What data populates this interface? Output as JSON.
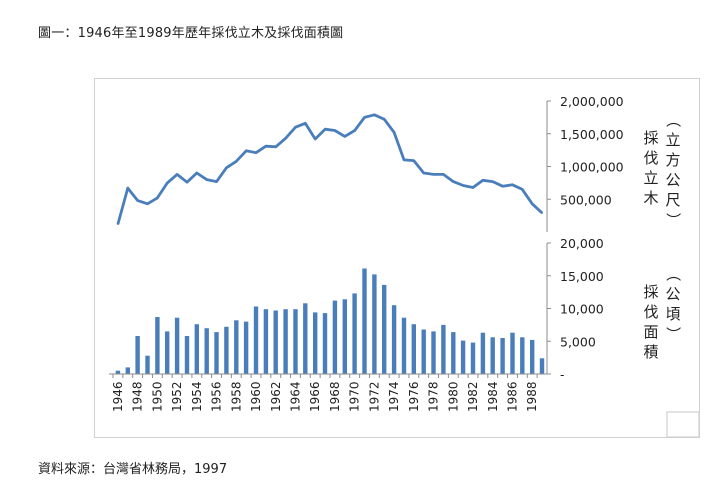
{
  "figure_title": "圖一：1946年至1989年歷年採伐立木及採伐面積圖",
  "source": "資料來源：台灣省林務局，1997",
  "chart_data": [
    {
      "type": "line",
      "ylabel": "（立方公尺）採伐立木",
      "ylim": [
        0,
        2000000
      ],
      "yticks": [
        "500,000",
        "1,000,000",
        "1,500,000",
        "2,000,000"
      ],
      "color": "#4a7ebb",
      "x": [
        1946,
        1947,
        1948,
        1949,
        1950,
        1951,
        1952,
        1953,
        1954,
        1955,
        1956,
        1957,
        1958,
        1959,
        1960,
        1961,
        1962,
        1963,
        1964,
        1965,
        1966,
        1967,
        1968,
        1969,
        1970,
        1971,
        1972,
        1973,
        1974,
        1975,
        1976,
        1977,
        1978,
        1979,
        1980,
        1981,
        1982,
        1983,
        1984,
        1985,
        1986,
        1987,
        1988,
        1989
      ],
      "values": [
        120000,
        670000,
        480000,
        430000,
        520000,
        750000,
        880000,
        760000,
        900000,
        800000,
        770000,
        980000,
        1080000,
        1240000,
        1210000,
        1310000,
        1300000,
        1430000,
        1600000,
        1660000,
        1420000,
        1570000,
        1550000,
        1460000,
        1550000,
        1750000,
        1790000,
        1720000,
        1520000,
        1100000,
        1090000,
        900000,
        880000,
        880000,
        770000,
        710000,
        680000,
        790000,
        770000,
        700000,
        720000,
        650000,
        430000,
        290000
      ]
    },
    {
      "type": "bar",
      "ylabel": "（公頃）採伐面積",
      "ylim": [
        0,
        20000
      ],
      "yticks": [
        "-",
        "5,000",
        "10,000",
        "15,000",
        "20,000"
      ],
      "color": "#4a7ebb",
      "x_tick_labels": [
        "1946",
        "1948",
        "1950",
        "1952",
        "1954",
        "1956",
        "1958",
        "1960",
        "1962",
        "1964",
        "1966",
        "1968",
        "1970",
        "1972",
        "1974",
        "1976",
        "1978",
        "1980",
        "1982",
        "1984",
        "1986",
        "1988"
      ],
      "categories": [
        1946,
        1947,
        1948,
        1949,
        1950,
        1951,
        1952,
        1953,
        1954,
        1955,
        1956,
        1957,
        1958,
        1959,
        1960,
        1961,
        1962,
        1963,
        1964,
        1965,
        1966,
        1967,
        1968,
        1969,
        1970,
        1971,
        1972,
        1973,
        1974,
        1975,
        1976,
        1977,
        1978,
        1979,
        1980,
        1981,
        1982,
        1983,
        1984,
        1985,
        1986,
        1987,
        1988,
        1989
      ],
      "values": [
        500,
        1000,
        5800,
        2800,
        8700,
        6500,
        8600,
        5800,
        7600,
        7000,
        6400,
        7200,
        8200,
        8000,
        10300,
        9900,
        9700,
        9900,
        9900,
        10800,
        9400,
        9300,
        11200,
        11400,
        12300,
        16100,
        15200,
        13600,
        10500,
        8600,
        7600,
        6800,
        6500,
        7500,
        6400,
        5100,
        4800,
        6300,
        5600,
        5500,
        6300,
        5600,
        5200,
        2400
      ]
    }
  ]
}
